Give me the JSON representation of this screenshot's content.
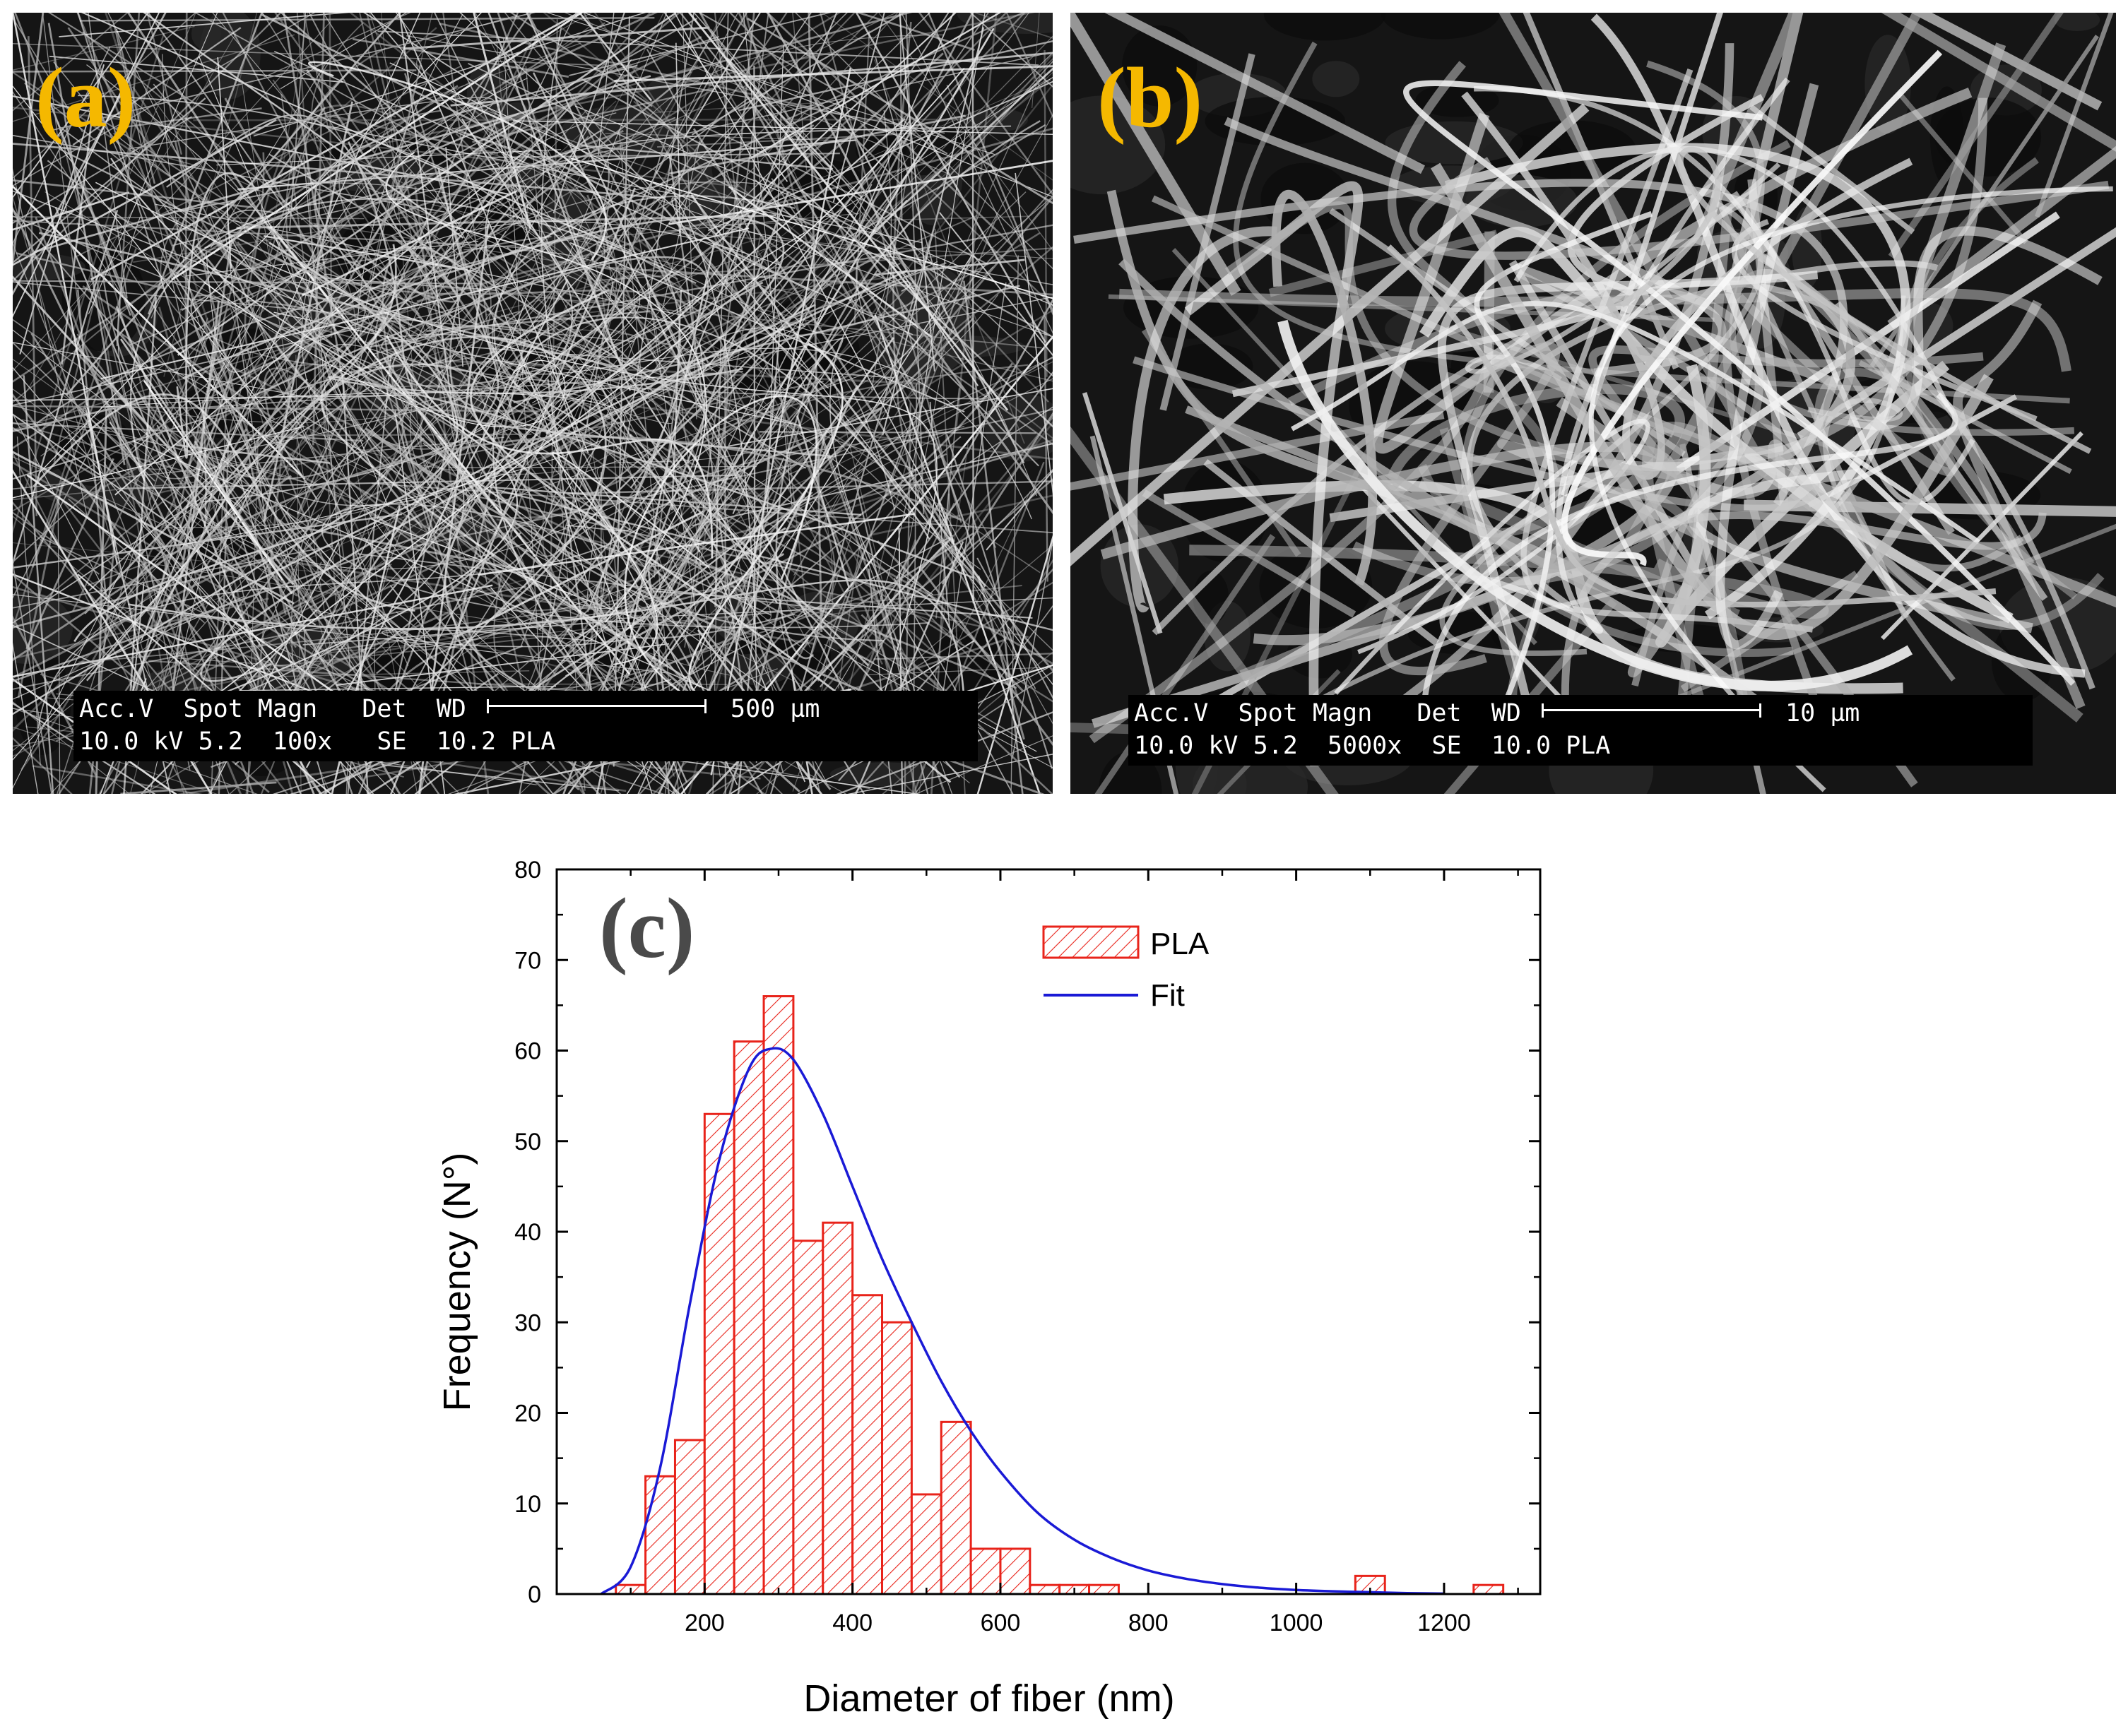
{
  "panels": {
    "a": {
      "label": "(a)",
      "databar": {
        "header": "Acc.V  Spot Magn   Det  WD",
        "values": "10.0 kV 5.2  100x   SE  10.2 PLA",
        "scale": "500 µm"
      }
    },
    "b": {
      "label": "(b)",
      "databar": {
        "header": "Acc.V  Spot Magn   Det  WD",
        "values": "10.0 kV 5.2  5000x  SE  10.0 PLA",
        "scale": "10 µm"
      }
    }
  },
  "chart_data": {
    "type": "bar",
    "panel_label": "(c)",
    "xlabel": "Diameter of fiber (nm)",
    "ylabel": "Frequency (N°)",
    "xlim": [
      0,
      1330
    ],
    "ylim": [
      0,
      80
    ],
    "xticks": [
      200,
      400,
      600,
      800,
      1000,
      1200
    ],
    "yticks": [
      0,
      10,
      20,
      30,
      40,
      50,
      60,
      70,
      80
    ],
    "bin_width": 40,
    "grid": false,
    "legend_position": "top-right",
    "colors": {
      "bars": "#e8231a",
      "fit": "#1a1ad6"
    },
    "series": [
      {
        "name": "PLA",
        "x": [
          100,
          140,
          180,
          220,
          260,
          300,
          340,
          380,
          420,
          460,
          500,
          540,
          580,
          620,
          660,
          700,
          740,
          780,
          820,
          860,
          900,
          940,
          980,
          1020,
          1060,
          1100,
          1140,
          1180,
          1220,
          1260
        ],
        "values": [
          1,
          13,
          17,
          53,
          61,
          66,
          39,
          41,
          33,
          30,
          11,
          19,
          5,
          5,
          1,
          1,
          1,
          0,
          0,
          0,
          0,
          0,
          0,
          0,
          0,
          2,
          0,
          0,
          0,
          1
        ]
      },
      {
        "name": "Fit",
        "x": [
          60,
          100,
          140,
          180,
          220,
          260,
          290,
          320,
          360,
          400,
          440,
          480,
          520,
          560,
          600,
          650,
          700,
          750,
          800,
          850,
          900,
          950,
          1000,
          1050,
          1100,
          1150,
          1200
        ],
        "values": [
          0,
          3,
          14,
          32,
          48,
          58,
          60.2,
          59,
          53,
          45,
          37,
          30,
          23.5,
          18,
          13.5,
          9,
          6,
          4,
          2.6,
          1.7,
          1.1,
          0.7,
          0.45,
          0.3,
          0.2,
          0.1,
          0.05
        ]
      }
    ]
  }
}
